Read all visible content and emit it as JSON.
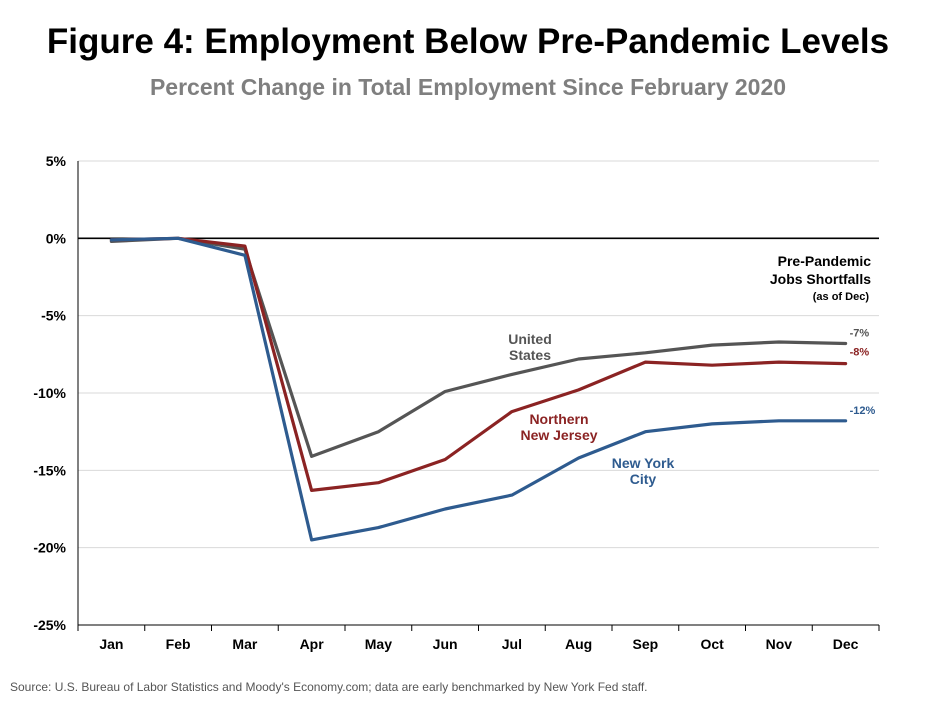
{
  "title": "Figure 4: Employment Below Pre-Pandemic Levels",
  "subtitle": "Percent Change in Total Employment Since February 2020",
  "source": "Source: U.S. Bureau of Labor Statistics and Moody's Economy.com; data are early benchmarked by New York Fed staff.",
  "chart_data": {
    "type": "line",
    "categories": [
      "Jan",
      "Feb",
      "Mar",
      "Apr",
      "May",
      "Jun",
      "Jul",
      "Aug",
      "Sep",
      "Oct",
      "Nov",
      "Dec"
    ],
    "ylim": [
      -25,
      5
    ],
    "yticks": [
      5,
      0,
      -5,
      -10,
      -15,
      -20,
      -25
    ],
    "ytick_labels": [
      "5%",
      "0%",
      "-5%",
      "-10%",
      "-15%",
      "-20%",
      "-25%"
    ],
    "grid": "horizontal",
    "series": [
      {
        "name": "United States",
        "label_lines": [
          "United",
          "States"
        ],
        "color": "#555555",
        "values": [
          -0.2,
          0,
          -0.7,
          -14.1,
          -12.5,
          -9.9,
          -8.8,
          -7.8,
          -7.4,
          -6.9,
          -6.7,
          -6.8
        ],
        "end_label": "-7%"
      },
      {
        "name": "Northern New Jersey",
        "label_lines": [
          "Northern",
          "New Jersey"
        ],
        "color": "#8b2323",
        "values": [
          -0.1,
          0,
          -0.5,
          -16.3,
          -15.8,
          -14.3,
          -11.2,
          -9.8,
          -8.0,
          -8.2,
          -8.0,
          -8.1
        ],
        "end_label": "-8%"
      },
      {
        "name": "New York City",
        "label_lines": [
          "New York",
          "City"
        ],
        "color": "#2e5b8f",
        "values": [
          -0.1,
          0,
          -1.1,
          -19.5,
          -18.7,
          -17.5,
          -16.6,
          -14.2,
          -12.5,
          -12.0,
          -11.8,
          -11.8
        ],
        "end_label": "-12%"
      }
    ],
    "annotation": {
      "lines": [
        "Pre-Pandemic",
        "Jobs Shortfalls"
      ],
      "note": "(as of Dec)"
    }
  }
}
